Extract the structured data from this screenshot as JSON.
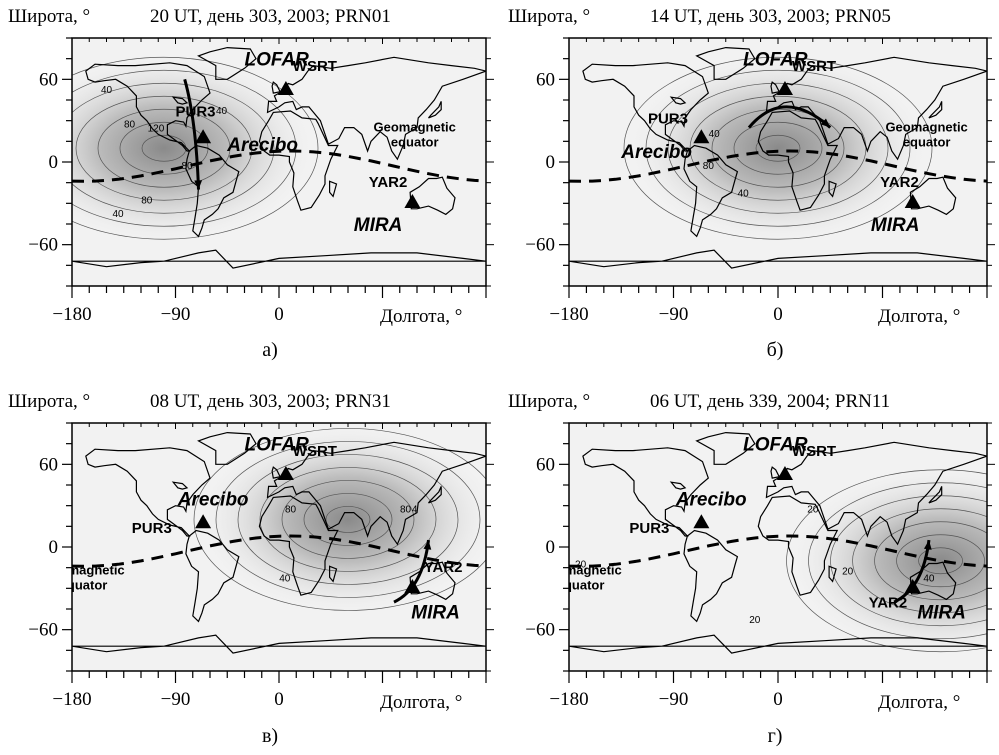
{
  "axis_labels": {
    "latitude": "Широта, °",
    "longitude": "Долгота, °"
  },
  "x_ticks": [
    "−180",
    "−90",
    "0"
  ],
  "y_ticks": [
    "60",
    "0",
    "−60"
  ],
  "geomagnetic_label": [
    "Geomagnetic",
    "equator"
  ],
  "panels": [
    {
      "letter": "а)",
      "title": "20 UT, день 303, 2003; PRN01",
      "labels": {
        "lofar": "LOFAR",
        "wsrt": "WSRT",
        "pur3": "PUR3",
        "arecibo": "Arecibo",
        "yar2": "YAR2",
        "mira": "MIRA"
      },
      "contour_labels": [
        "40",
        "80",
        "120",
        "80",
        "80",
        "40",
        "40"
      ],
      "shade_center": [
        -100,
        10
      ],
      "track": [
        [
          -82,
          60
        ],
        [
          -72,
          30
        ],
        [
          -70,
          -20
        ]
      ]
    },
    {
      "letter": "б)",
      "title": "14 UT, день 303, 2003; PRN05",
      "labels": {
        "lofar": "LOFAR",
        "wsrt": "WSRT",
        "pur3": "PUR3",
        "arecibo": "Arecibo",
        "yar2": "YAR2",
        "mira": "MIRA"
      },
      "contour_labels": [
        "40",
        "80",
        "40"
      ],
      "shade_center": [
        0,
        10
      ],
      "track": [
        [
          -25,
          25
        ],
        [
          5,
          55
        ],
        [
          45,
          25
        ]
      ]
    },
    {
      "letter": "в)",
      "title": "08 UT, день 303, 2003; PRN31",
      "labels": {
        "lofar": "LOFAR",
        "wsrt": "WSRT",
        "pur3": "PUR3",
        "arecibo": "Arecibo",
        "yar2": "YAR2",
        "mira": "MIRA"
      },
      "contour_labels": [
        "80",
        "40",
        "80",
        "4"
      ],
      "shade_center": [
        60,
        20
      ],
      "track": [
        [
          100,
          -40
        ],
        [
          125,
          -30
        ],
        [
          130,
          5
        ]
      ]
    },
    {
      "letter": "г)",
      "title": "06 UT, день 339, 2004; PRN11",
      "labels": {
        "lofar": "LOFAR",
        "wsrt": "WSRT",
        "pur3": "PUR3",
        "arecibo": "Arecibo",
        "yar2": "YAR2",
        "mira": "MIRA"
      },
      "contour_labels": [
        "20",
        "20",
        "20",
        "20",
        "40"
      ],
      "shade_center": [
        140,
        -10
      ],
      "track": [
        [
          100,
          -40
        ],
        [
          125,
          -30
        ],
        [
          130,
          5
        ]
      ]
    }
  ]
}
